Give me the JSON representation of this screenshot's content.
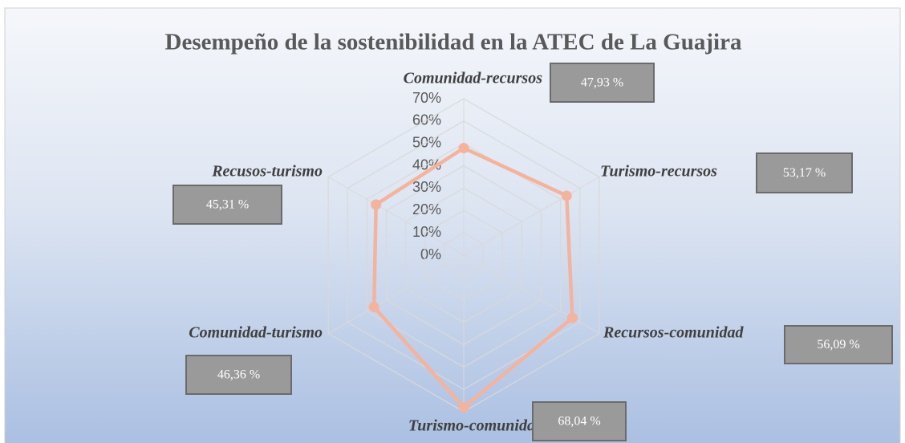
{
  "chart_data": {
    "type": "radar",
    "title": "Desempeño de la sostenibilidad en la ATEC de La Guajira",
    "categories": [
      "Comunidad-recursos",
      "Turismo-recursos",
      "Recursos-comunidad",
      "Turismo-comunidad",
      "Comunidad-turismo",
      "Recusos-turismo"
    ],
    "values": [
      47.93,
      53.17,
      56.09,
      68.04,
      46.36,
      45.31
    ],
    "value_labels": [
      "47,93 %",
      "53,17 %",
      "56,09 %",
      "68,04 %",
      "46,36 %",
      "45,31 %"
    ],
    "color": "#f4b39c",
    "ylim": [
      0,
      70
    ],
    "yticks": [
      {
        "value": 0,
        "label": "0%"
      },
      {
        "value": 10,
        "label": "10%"
      },
      {
        "value": 20,
        "label": "20%"
      },
      {
        "value": 30,
        "label": "30%"
      },
      {
        "value": 40,
        "label": "40%"
      },
      {
        "value": 50,
        "label": "50%"
      },
      {
        "value": 60,
        "label": "60%"
      },
      {
        "value": 70,
        "label": "70%"
      }
    ],
    "grid": true
  }
}
